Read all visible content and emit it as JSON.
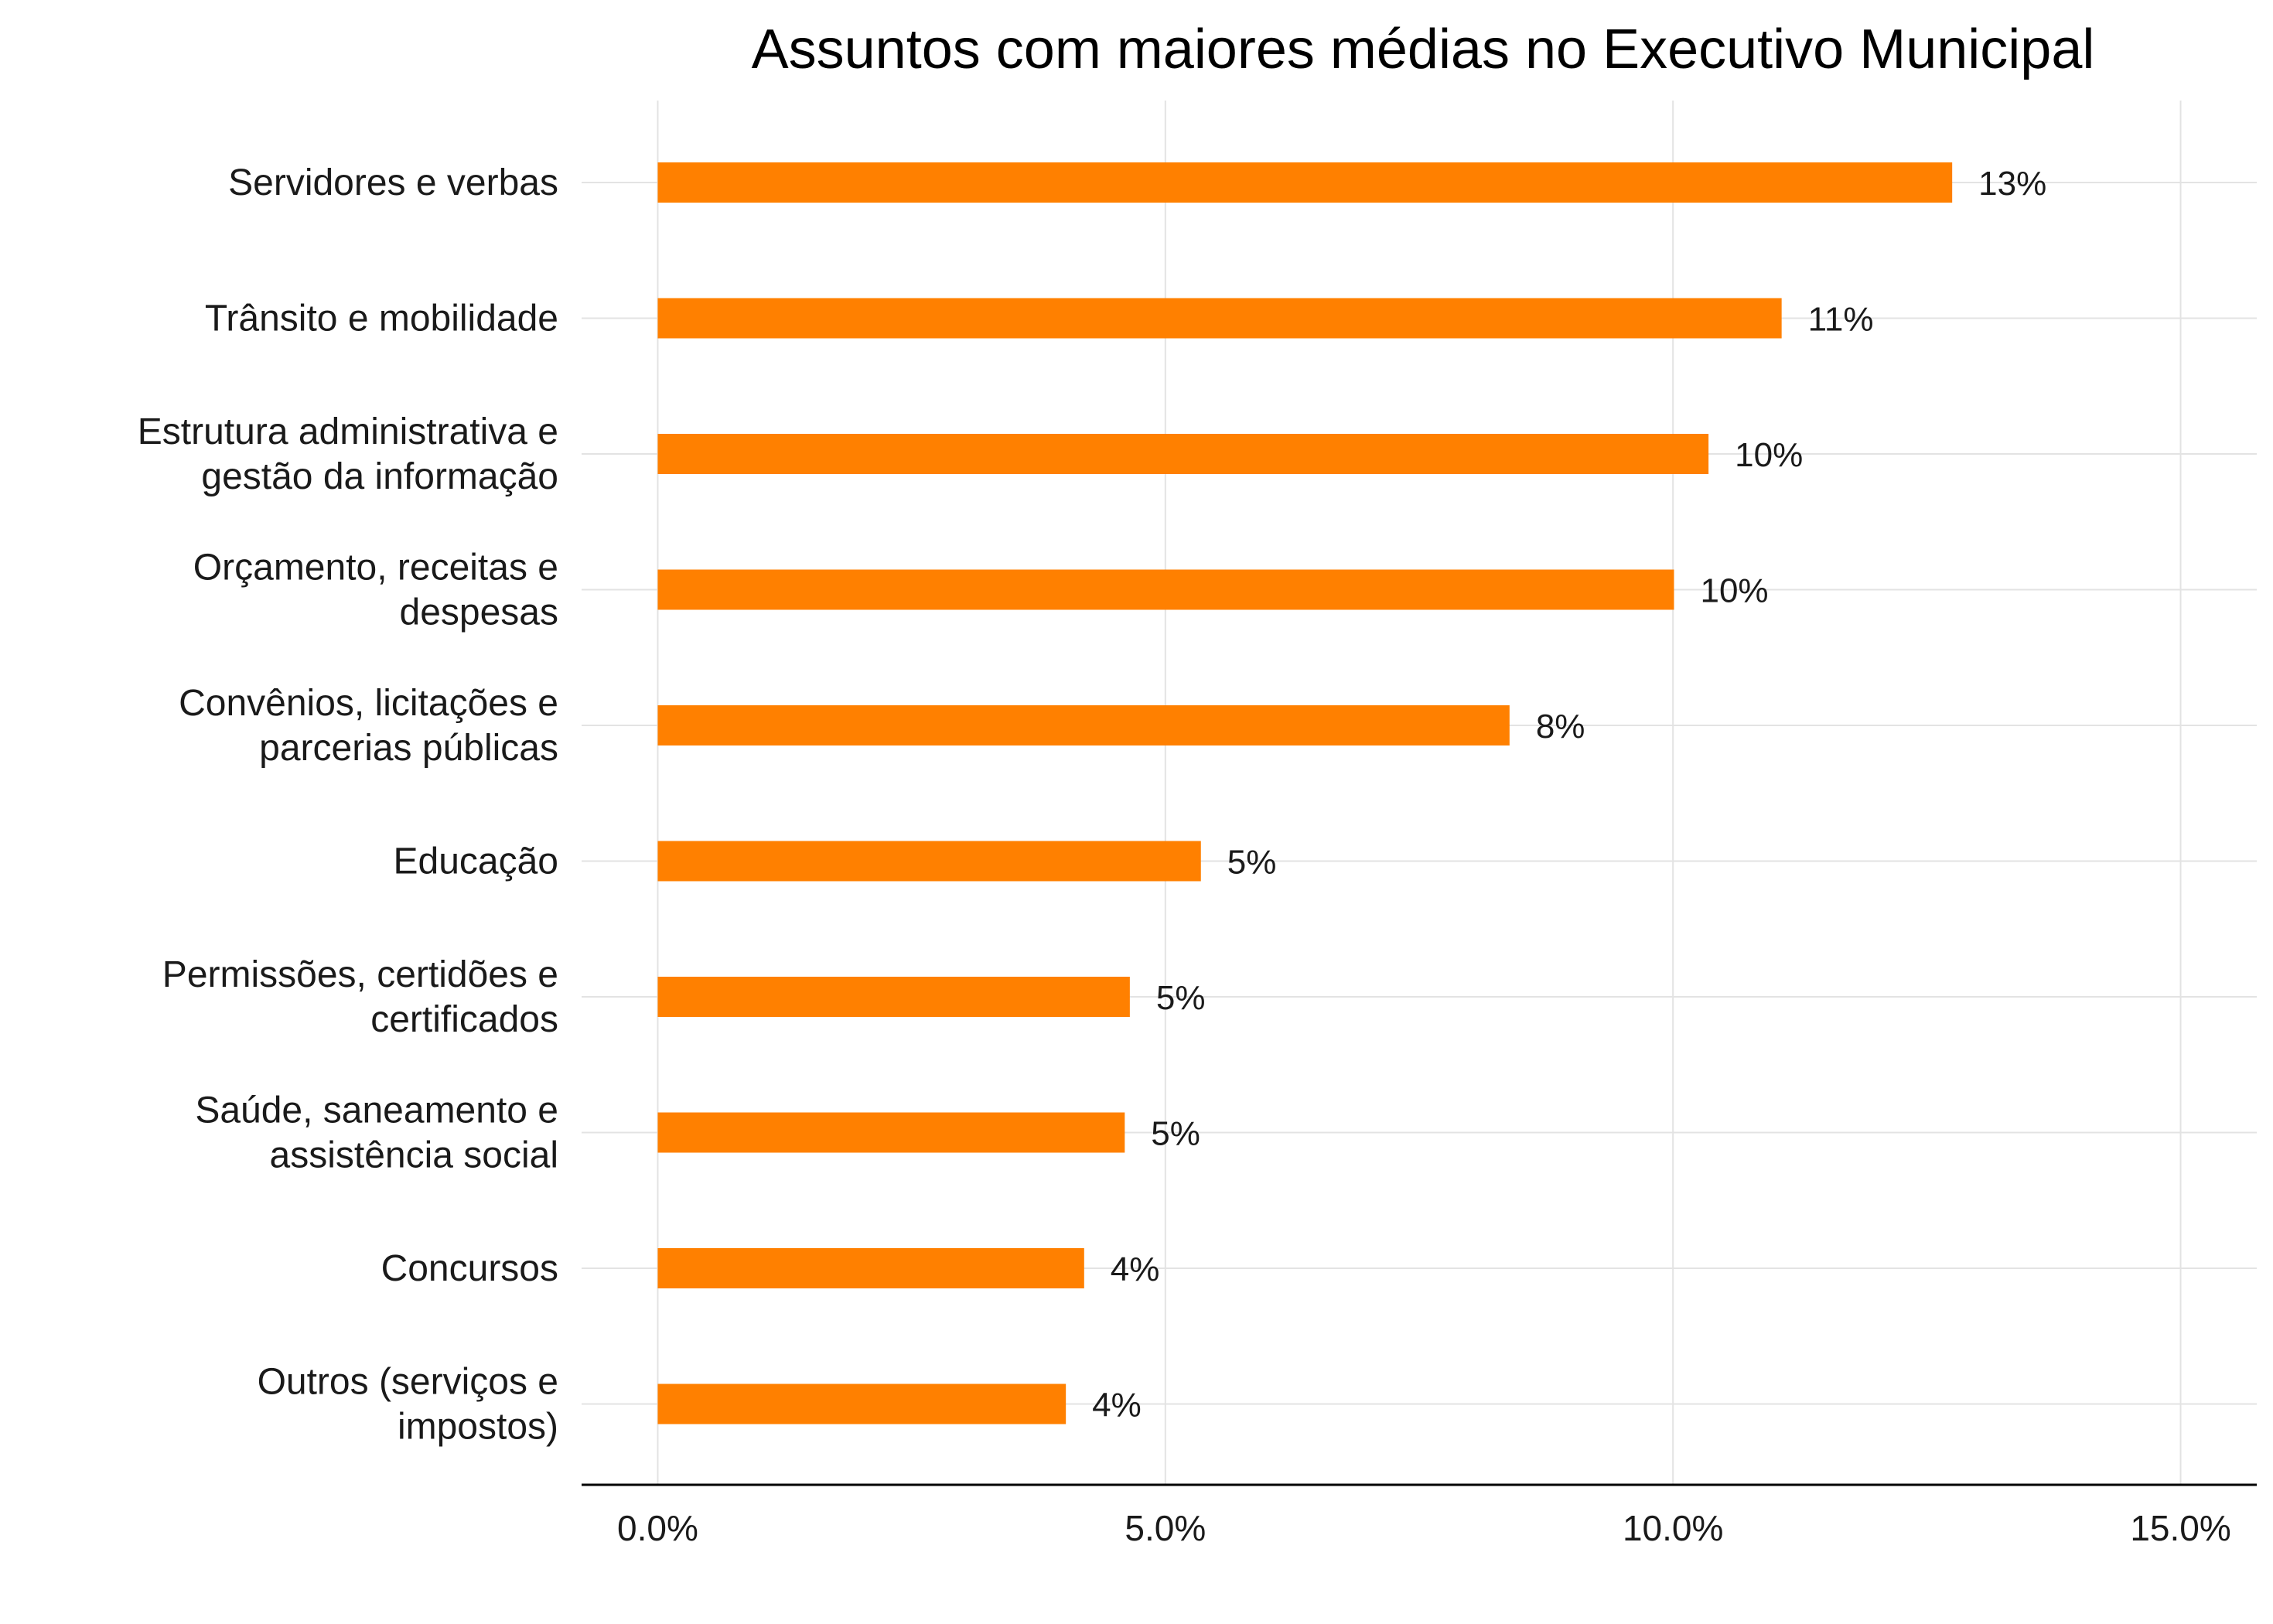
{
  "chart_data": {
    "type": "bar",
    "orientation": "horizontal",
    "title": "Assuntos com maiores médias no Executivo Municipal",
    "xlabel": "",
    "ylabel": "",
    "categories": [
      [
        "Servidores e verbas"
      ],
      [
        "Trânsito e mobilidade"
      ],
      [
        "Estrutura administrativa e",
        "gestão da informação"
      ],
      [
        "Orçamento, receitas e",
        "despesas"
      ],
      [
        "Convênios, licitações e",
        "parcerias públicas"
      ],
      [
        "Educação"
      ],
      [
        "Permissões, certidões e",
        "certificados"
      ],
      [
        "Saúde, saneamento e",
        "assistência social"
      ],
      [
        "Concursos"
      ],
      [
        "Outros (serviços e",
        "impostos)"
      ]
    ],
    "values": [
      12.75,
      11.07,
      10.35,
      10.01,
      8.39,
      5.35,
      4.65,
      4.6,
      4.2,
      4.02
    ],
    "data_labels": [
      "13%",
      "11%",
      "10%",
      "10%",
      "8%",
      "5%",
      "5%",
      "5%",
      "4%",
      "4%"
    ],
    "xlim": [
      -0.75,
      15.75
    ],
    "x_ticks": [
      0,
      5,
      10,
      15
    ],
    "x_tick_labels": [
      "0.0%",
      "5.0%",
      "10.0%",
      "15.0%"
    ],
    "bar_color": "#FF8000",
    "grid": true,
    "legend": "none"
  }
}
